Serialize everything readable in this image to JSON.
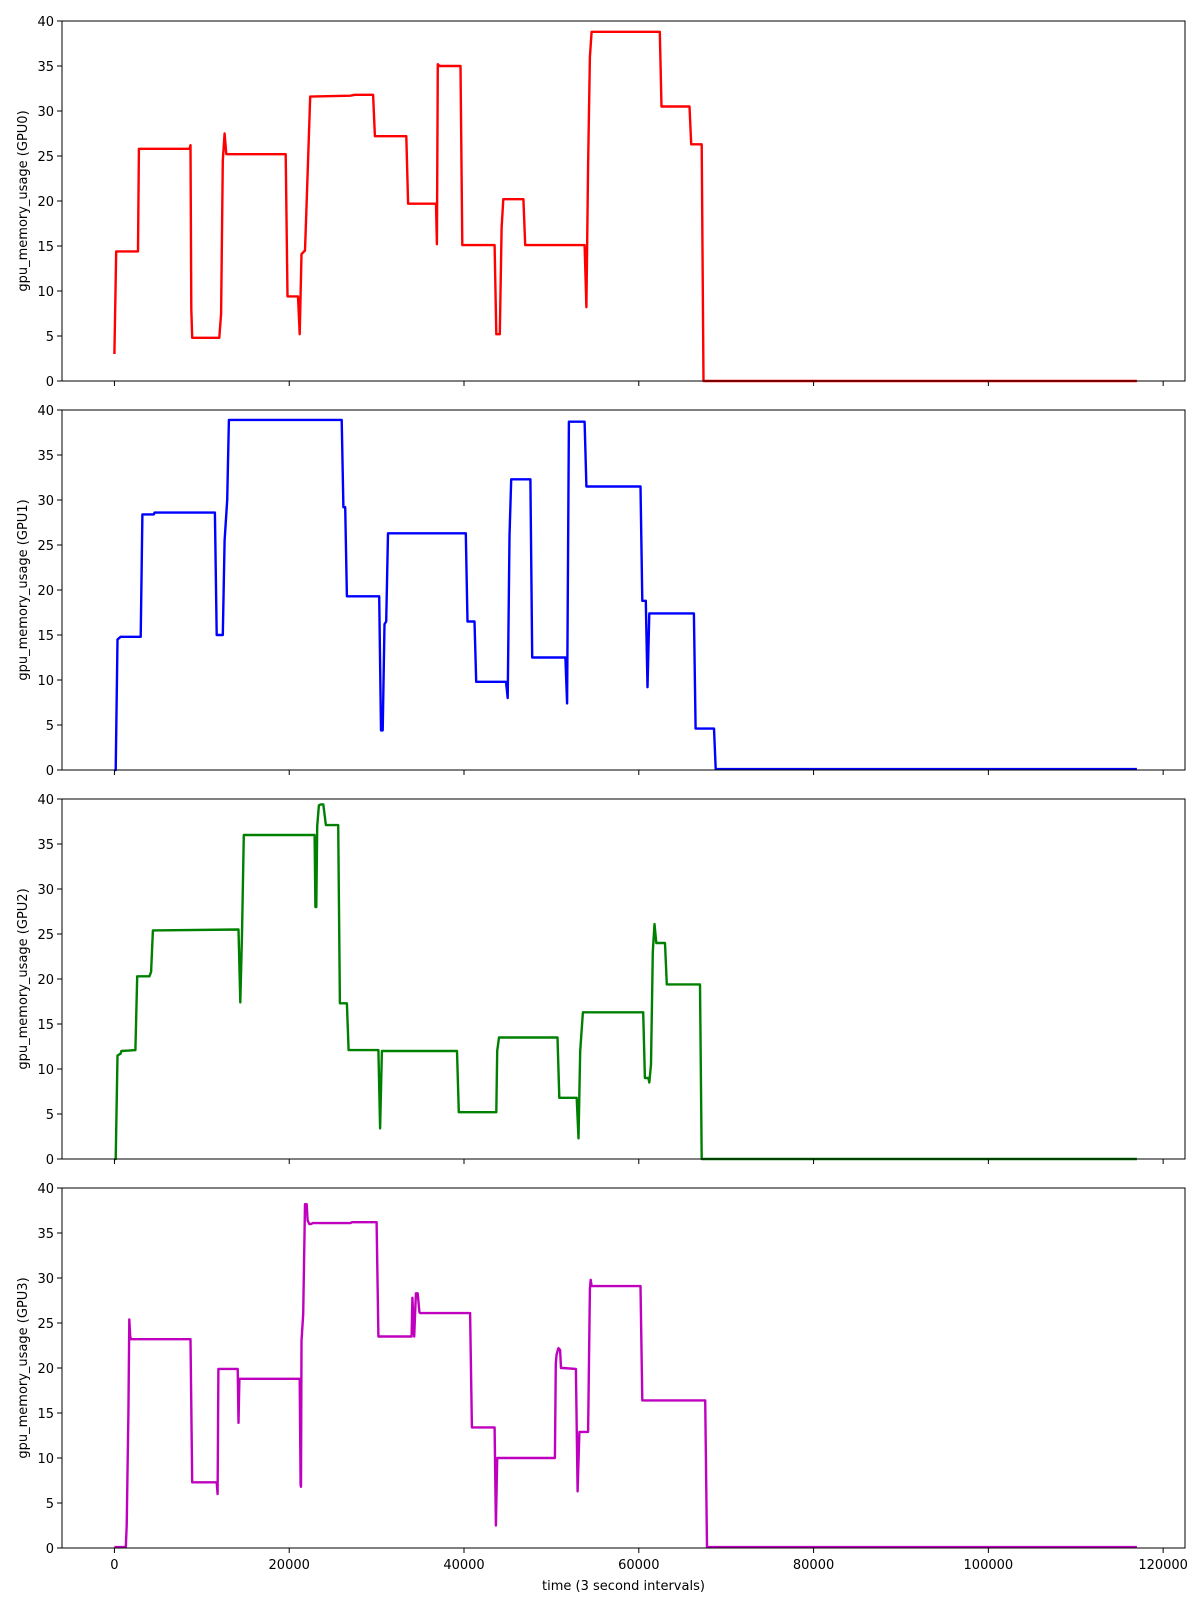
{
  "chart_data": [
    {
      "type": "line",
      "ylabel": "gpu_memory_usage (GPU0)",
      "xlabel": "",
      "ylim": [
        0,
        40
      ],
      "xlim": [
        -6000,
        122500
      ],
      "yticks": [
        0,
        5,
        10,
        15,
        20,
        25,
        30,
        35,
        40
      ],
      "color": "#ff0000",
      "series": [
        {
          "x": [
            0,
            200,
            2700,
            2800,
            8600,
            8700,
            8800,
            8900,
            12000,
            12200,
            12400,
            12600,
            12800,
            19600,
            19800,
            21000,
            21200,
            21400,
            21800,
            22000,
            22400,
            27000,
            27500,
            29600,
            29800,
            33400,
            33600,
            36800,
            36900,
            37000,
            37200,
            39600,
            39800,
            43500,
            43700,
            44100,
            44300,
            44500,
            46800,
            47000,
            53800,
            54000,
            54200,
            54400,
            54600,
            62400,
            62600,
            65800,
            66000,
            67200,
            67400,
            117000
          ],
          "y": [
            3,
            14.4,
            14.4,
            25.8,
            25.8,
            26.2,
            8,
            4.8,
            4.8,
            7.5,
            24.5,
            27.5,
            25.2,
            25.2,
            9.4,
            9.4,
            5.2,
            14.1,
            14.5,
            20,
            31.6,
            31.7,
            31.8,
            31.8,
            27.2,
            27.2,
            19.7,
            19.7,
            15.2,
            35.2,
            35,
            35,
            15.1,
            15.1,
            5.2,
            5.2,
            17,
            20.2,
            20.2,
            15.1,
            15.1,
            8.2,
            24,
            36,
            38.8,
            38.8,
            30.5,
            30.5,
            26.3,
            26.3,
            0,
            0
          ]
        }
      ]
    },
    {
      "type": "line",
      "ylabel": "gpu_memory_usage (GPU1)",
      "xlabel": "",
      "ylim": [
        0,
        40
      ],
      "xlim": [
        -6000,
        122500
      ],
      "yticks": [
        0,
        5,
        10,
        15,
        20,
        25,
        30,
        35,
        40
      ],
      "color": "#0000ff",
      "series": [
        {
          "x": [
            0,
            150,
            350,
            700,
            3000,
            3200,
            4500,
            4600,
            11500,
            11700,
            12400,
            12600,
            12900,
            13100,
            26000,
            26200,
            26400,
            26600,
            30300,
            30500,
            30700,
            30900,
            31100,
            31300,
            40200,
            40400,
            41200,
            41400,
            44800,
            45000,
            45200,
            45400,
            47600,
            47800,
            51600,
            51800,
            52000,
            53800,
            54000,
            60200,
            60400,
            60800,
            61000,
            61200,
            61400,
            66300,
            66500,
            68600,
            68800,
            117000
          ],
          "y": [
            0,
            0,
            14.5,
            14.8,
            14.8,
            28.4,
            28.4,
            28.6,
            28.6,
            15,
            15,
            25.5,
            30,
            38.9,
            38.9,
            29.2,
            29.2,
            19.3,
            19.3,
            4.4,
            4.4,
            16.2,
            16.5,
            26.3,
            26.3,
            16.5,
            16.5,
            9.8,
            9.8,
            8,
            26,
            32.3,
            32.3,
            12.5,
            12.5,
            7.4,
            38.7,
            38.7,
            31.5,
            31.5,
            18.8,
            18.8,
            9.2,
            17.4,
            17.4,
            17.4,
            4.6,
            4.6,
            0.1,
            0.1
          ]
        }
      ]
    },
    {
      "type": "line",
      "ylabel": "gpu_memory_usage (GPU2)",
      "xlabel": "",
      "ylim": [
        0,
        40
      ],
      "xlim": [
        -6000,
        122500
      ],
      "yticks": [
        0,
        5,
        10,
        15,
        20,
        25,
        30,
        35,
        40
      ],
      "color": "#008000",
      "series": [
        {
          "x": [
            0,
            150,
            350,
            700,
            800,
            2400,
            2600,
            4000,
            4200,
            4400,
            14200,
            14400,
            14600,
            14800,
            22900,
            23000,
            23100,
            23200,
            23400,
            23600,
            23900,
            24200,
            25600,
            25800,
            26600,
            26800,
            30200,
            30400,
            30600,
            39200,
            39400,
            43700,
            43800,
            44000,
            50700,
            50900,
            52900,
            53100,
            53300,
            53600,
            60500,
            60700,
            61100,
            61200,
            61400,
            61600,
            61800,
            62000,
            62200,
            63000,
            63200,
            67000,
            67200,
            117000
          ],
          "y": [
            0,
            0,
            11.5,
            11.7,
            12,
            12.1,
            20.3,
            20.3,
            20.8,
            25.4,
            25.5,
            17.4,
            25,
            36,
            36,
            28,
            28,
            37,
            39.3,
            39.4,
            39.4,
            37.1,
            37.1,
            17.3,
            17.3,
            12.1,
            12.1,
            3.4,
            12,
            12,
            5.2,
            5.2,
            12,
            13.5,
            13.5,
            6.8,
            6.8,
            2.3,
            12,
            16.3,
            16.3,
            9,
            9,
            8.5,
            10.5,
            23,
            26.1,
            24,
            24,
            24,
            19.4,
            19.4,
            0,
            0
          ]
        }
      ]
    },
    {
      "type": "line",
      "ylabel": "gpu_memory_usage (GPU3)",
      "xlabel": "time (3 second intervals)",
      "ylim": [
        0,
        40
      ],
      "xlim": [
        -6000,
        122500
      ],
      "yticks": [
        0,
        5,
        10,
        15,
        20,
        25,
        30,
        35,
        40
      ],
      "xticks": [
        0,
        20000,
        40000,
        60000,
        80000,
        100000,
        120000
      ],
      "color": "#bf00bf",
      "series": [
        {
          "x": [
            0,
            1300,
            1400,
            1600,
            1700,
            1800,
            1900,
            2000,
            2100,
            8700,
            8900,
            11700,
            11800,
            11900,
            14100,
            14200,
            14300,
            14400,
            21200,
            21300,
            21350,
            21400,
            21600,
            21800,
            22000,
            22100,
            22300,
            22500,
            22700,
            27000,
            27200,
            30000,
            30200,
            34000,
            34100,
            34300,
            34500,
            34700,
            34900,
            35000,
            40700,
            40900,
            43500,
            43650,
            43800,
            50400,
            50500,
            50600,
            50800,
            51000,
            51100,
            51300,
            52800,
            53000,
            53200,
            53600,
            54200,
            54400,
            54500,
            54600,
            54800,
            60200,
            60400,
            67600,
            67800,
            117000
          ],
          "y": [
            0.1,
            0.1,
            2.5,
            15,
            25.4,
            23.5,
            23.2,
            23.2,
            23.2,
            23.2,
            7.3,
            7.3,
            6,
            19.9,
            19.9,
            13.9,
            18.8,
            18.8,
            18.8,
            7,
            6.8,
            23,
            26,
            38.2,
            38.2,
            36.4,
            36,
            36,
            36.1,
            36.1,
            36.2,
            36.2,
            23.5,
            23.5,
            27.8,
            23.5,
            28.3,
            28.3,
            26.2,
            26.1,
            26.1,
            13.4,
            13.4,
            2.5,
            10,
            10,
            20.5,
            21.5,
            22.2,
            22,
            20,
            20,
            19.9,
            6.3,
            12.9,
            12.9,
            12.9,
            28.8,
            29.8,
            29.1,
            29.1,
            29.1,
            16.4,
            16.4,
            0.1,
            0.1
          ]
        }
      ]
    }
  ]
}
